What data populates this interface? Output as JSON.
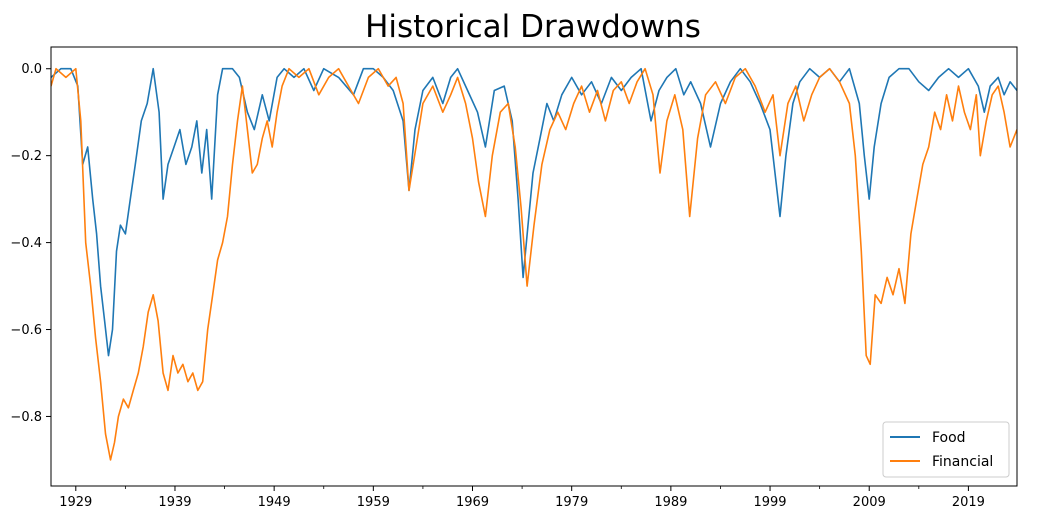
{
  "chart_data": {
    "type": "line",
    "title": "Historical Drawdowns",
    "xlabel": "",
    "ylabel": "",
    "xlim": [
      1926.5,
      2023.9
    ],
    "ylim": [
      -0.96,
      0.05
    ],
    "grid": false,
    "legend_position": "bottom-right",
    "x_ticks": [
      1929,
      1939,
      1949,
      1959,
      1969,
      1979,
      1989,
      1999,
      2009,
      2019
    ],
    "y_ticks": [
      0.0,
      -0.2,
      -0.4,
      -0.6,
      -0.8
    ],
    "y_tick_labels": [
      "0.0",
      "−0.2",
      "−0.4",
      "−0.6",
      "−0.8"
    ],
    "series": [
      {
        "name": "Food",
        "color": "#1f77b4",
        "x": [
          1926.5,
          1927.5,
          1928.5,
          1929.2,
          1929.7,
          1930.2,
          1930.7,
          1931.1,
          1931.5,
          1931.9,
          1932.3,
          1932.7,
          1933.1,
          1933.5,
          1934.0,
          1934.5,
          1935.0,
          1935.6,
          1936.2,
          1936.8,
          1937.4,
          1937.8,
          1938.3,
          1938.9,
          1939.5,
          1940.1,
          1940.7,
          1941.2,
          1941.7,
          1942.2,
          1942.7,
          1943.3,
          1943.8,
          1944.3,
          1944.8,
          1945.5,
          1946.3,
          1947.0,
          1947.8,
          1948.5,
          1949.3,
          1950.0,
          1951.0,
          1952.0,
          1953.0,
          1954.0,
          1955.5,
          1957.0,
          1958.0,
          1959.0,
          1960.0,
          1961.0,
          1962.0,
          1962.6,
          1963.2,
          1964.0,
          1965.0,
          1966.0,
          1966.8,
          1967.5,
          1968.5,
          1969.5,
          1970.3,
          1971.2,
          1972.2,
          1973.0,
          1973.6,
          1974.1,
          1974.6,
          1975.1,
          1975.8,
          1976.5,
          1977.2,
          1978.0,
          1979.0,
          1980.0,
          1981.0,
          1982.0,
          1983.0,
          1984.0,
          1985.0,
          1986.0,
          1987.0,
          1987.8,
          1988.6,
          1989.5,
          1990.3,
          1991.0,
          1992.0,
          1993.0,
          1994.0,
          1995.0,
          1996.0,
          1997.0,
          1998.0,
          1999.0,
          2000.0,
          2000.6,
          2001.3,
          2002.0,
          2003.0,
          2004.0,
          2005.0,
          2006.0,
          2007.0,
          2008.0,
          2008.5,
          2009.0,
          2009.5,
          2010.2,
          2011.0,
          2012.0,
          2013.0,
          2014.0,
          2015.0,
          2016.0,
          2017.0,
          2018.0,
          2019.0,
          2020.0,
          2020.6,
          2021.2,
          2022.0,
          2022.6,
          2023.2,
          2023.9
        ],
        "y": [
          -0.02,
          0.0,
          0.0,
          -0.04,
          -0.22,
          -0.18,
          -0.3,
          -0.38,
          -0.5,
          -0.58,
          -0.66,
          -0.6,
          -0.42,
          -0.36,
          -0.38,
          -0.3,
          -0.22,
          -0.12,
          -0.08,
          0.0,
          -0.1,
          -0.3,
          -0.22,
          -0.18,
          -0.14,
          -0.22,
          -0.18,
          -0.12,
          -0.24,
          -0.14,
          -0.3,
          -0.06,
          0.0,
          0.0,
          0.0,
          -0.02,
          -0.1,
          -0.14,
          -0.06,
          -0.12,
          -0.02,
          0.0,
          -0.02,
          0.0,
          -0.05,
          0.0,
          -0.02,
          -0.06,
          0.0,
          0.0,
          -0.02,
          -0.05,
          -0.12,
          -0.28,
          -0.14,
          -0.05,
          -0.02,
          -0.08,
          -0.02,
          0.0,
          -0.05,
          -0.1,
          -0.18,
          -0.05,
          -0.04,
          -0.12,
          -0.3,
          -0.48,
          -0.36,
          -0.24,
          -0.16,
          -0.08,
          -0.12,
          -0.06,
          -0.02,
          -0.06,
          -0.03,
          -0.08,
          -0.02,
          -0.05,
          -0.02,
          0.0,
          -0.12,
          -0.05,
          -0.02,
          0.0,
          -0.06,
          -0.03,
          -0.08,
          -0.18,
          -0.08,
          -0.03,
          0.0,
          -0.03,
          -0.08,
          -0.14,
          -0.34,
          -0.2,
          -0.08,
          -0.03,
          0.0,
          -0.02,
          0.0,
          -0.03,
          0.0,
          -0.08,
          -0.2,
          -0.3,
          -0.18,
          -0.08,
          -0.02,
          0.0,
          0.0,
          -0.03,
          -0.05,
          -0.02,
          0.0,
          -0.02,
          0.0,
          -0.04,
          -0.1,
          -0.04,
          -0.02,
          -0.06,
          -0.03,
          -0.05
        ]
      },
      {
        "name": "Financial",
        "color": "#ff7f0e",
        "x": [
          1926.5,
          1927.0,
          1928.0,
          1929.0,
          1929.5,
          1930.0,
          1930.5,
          1931.0,
          1931.5,
          1932.0,
          1932.5,
          1932.9,
          1933.3,
          1933.8,
          1934.3,
          1934.8,
          1935.3,
          1935.8,
          1936.3,
          1936.8,
          1937.3,
          1937.8,
          1938.3,
          1938.8,
          1939.3,
          1939.8,
          1940.3,
          1940.8,
          1941.3,
          1941.8,
          1942.3,
          1942.8,
          1943.3,
          1943.8,
          1944.3,
          1944.8,
          1945.3,
          1945.8,
          1946.3,
          1946.8,
          1947.3,
          1947.8,
          1948.3,
          1948.8,
          1949.3,
          1949.8,
          1950.5,
          1951.5,
          1952.5,
          1953.5,
          1954.5,
          1955.5,
          1956.5,
          1957.5,
          1958.5,
          1959.5,
          1960.5,
          1961.3,
          1962.0,
          1962.6,
          1963.3,
          1964.0,
          1965.0,
          1966.0,
          1966.8,
          1967.5,
          1968.3,
          1969.0,
          1969.6,
          1970.3,
          1971.0,
          1971.8,
          1972.6,
          1973.3,
          1973.9,
          1974.5,
          1975.2,
          1976.0,
          1976.8,
          1977.6,
          1978.4,
          1979.2,
          1980.0,
          1980.8,
          1981.6,
          1982.4,
          1983.2,
          1984.0,
          1984.8,
          1985.6,
          1986.4,
          1987.2,
          1987.9,
          1988.6,
          1989.4,
          1990.2,
          1990.9,
          1991.7,
          1992.5,
          1993.5,
          1994.5,
          1995.5,
          1996.5,
          1997.5,
          1998.5,
          1999.3,
          2000.0,
          2000.8,
          2001.6,
          2002.4,
          2003.2,
          2004.0,
          2005.0,
          2006.0,
          2007.0,
          2007.6,
          2008.2,
          2008.7,
          2009.1,
          2009.6,
          2010.2,
          2010.8,
          2011.4,
          2012.0,
          2012.6,
          2013.2,
          2013.8,
          2014.4,
          2015.0,
          2015.6,
          2016.2,
          2016.8,
          2017.4,
          2018.0,
          2018.6,
          2019.2,
          2019.8,
          2020.2,
          2020.8,
          2021.4,
          2022.0,
          2022.6,
          2023.2,
          2023.9
        ],
        "y": [
          -0.04,
          0.0,
          -0.02,
          0.0,
          -0.12,
          -0.4,
          -0.5,
          -0.62,
          -0.72,
          -0.84,
          -0.9,
          -0.86,
          -0.8,
          -0.76,
          -0.78,
          -0.74,
          -0.7,
          -0.64,
          -0.56,
          -0.52,
          -0.58,
          -0.7,
          -0.74,
          -0.66,
          -0.7,
          -0.68,
          -0.72,
          -0.7,
          -0.74,
          -0.72,
          -0.6,
          -0.52,
          -0.44,
          -0.4,
          -0.34,
          -0.22,
          -0.12,
          -0.04,
          -0.14,
          -0.24,
          -0.22,
          -0.16,
          -0.12,
          -0.18,
          -0.1,
          -0.04,
          0.0,
          -0.02,
          0.0,
          -0.06,
          -0.02,
          0.0,
          -0.04,
          -0.08,
          -0.02,
          0.0,
          -0.04,
          -0.02,
          -0.08,
          -0.28,
          -0.18,
          -0.08,
          -0.04,
          -0.1,
          -0.06,
          -0.02,
          -0.08,
          -0.16,
          -0.26,
          -0.34,
          -0.2,
          -0.1,
          -0.08,
          -0.18,
          -0.32,
          -0.5,
          -0.36,
          -0.22,
          -0.14,
          -0.1,
          -0.14,
          -0.08,
          -0.04,
          -0.1,
          -0.05,
          -0.12,
          -0.05,
          -0.03,
          -0.08,
          -0.03,
          0.0,
          -0.06,
          -0.24,
          -0.12,
          -0.06,
          -0.14,
          -0.34,
          -0.16,
          -0.06,
          -0.03,
          -0.08,
          -0.02,
          0.0,
          -0.04,
          -0.1,
          -0.06,
          -0.2,
          -0.08,
          -0.04,
          -0.12,
          -0.06,
          -0.02,
          0.0,
          -0.03,
          -0.08,
          -0.2,
          -0.42,
          -0.66,
          -0.68,
          -0.52,
          -0.54,
          -0.48,
          -0.52,
          -0.46,
          -0.54,
          -0.38,
          -0.3,
          -0.22,
          -0.18,
          -0.1,
          -0.14,
          -0.06,
          -0.12,
          -0.04,
          -0.1,
          -0.14,
          -0.06,
          -0.2,
          -0.12,
          -0.06,
          -0.04,
          -0.1,
          -0.18,
          -0.14
        ]
      }
    ]
  }
}
